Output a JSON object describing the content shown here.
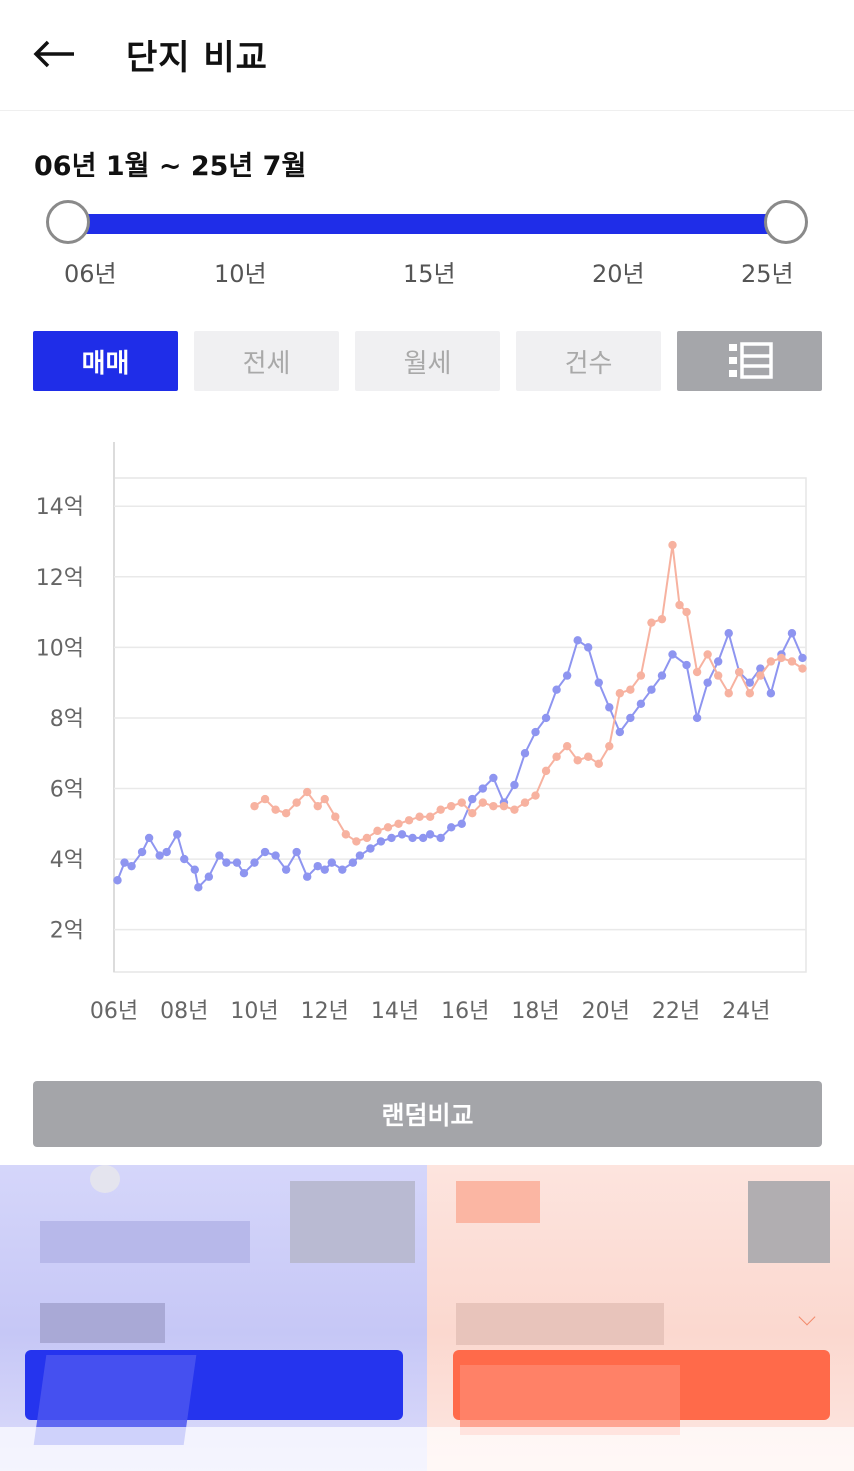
{
  "header": {
    "title": "단지 비교",
    "back_icon": "arrow-left-icon"
  },
  "range": {
    "label": "06년 1월 ~ 25년 7월",
    "ticks": [
      "06년",
      "10년",
      "15년",
      "20년",
      "25년"
    ],
    "start": "06년 1월",
    "end": "25년 7월"
  },
  "tabs": [
    {
      "label": "매매",
      "active": true
    },
    {
      "label": "전세",
      "active": false
    },
    {
      "label": "월세",
      "active": false
    },
    {
      "label": "건수",
      "active": false
    }
  ],
  "tab_list_icon": "list-view-icon",
  "colors": {
    "accent": "#1f2de8",
    "blue_series": "#8e95f0",
    "salmon_series": "#f7b2a0",
    "button_gray": "#a4a5a9"
  },
  "chart_data": {
    "type": "line",
    "y_ticks": [
      "14억",
      "12억",
      "10억",
      "8억",
      "6억",
      "4억",
      "2억"
    ],
    "x_ticks": [
      "06년",
      "08년",
      "10년",
      "12년",
      "14년",
      "16년",
      "18년",
      "20년",
      "22년",
      "24년"
    ],
    "ylim": [
      0.8,
      14.8
    ],
    "xlim": [
      2006.0,
      2025.7
    ],
    "grid": true,
    "series": [
      {
        "color": "#8e95f0",
        "x": [
          2006.1,
          2006.3,
          2006.5,
          2006.8,
          2007.0,
          2007.3,
          2007.5,
          2007.8,
          2008.0,
          2008.3,
          2008.4,
          2008.7,
          2009.0,
          2009.2,
          2009.5,
          2009.7,
          2010.0,
          2010.3,
          2010.6,
          2010.9,
          2011.2,
          2011.5,
          2011.8,
          2012.0,
          2012.2,
          2012.5,
          2012.8,
          2013.0,
          2013.3,
          2013.6,
          2013.9,
          2014.2,
          2014.5,
          2014.8,
          2015.0,
          2015.3,
          2015.6,
          2015.9,
          2016.2,
          2016.5,
          2016.8,
          2017.1,
          2017.4,
          2017.7,
          2018.0,
          2018.3,
          2018.6,
          2018.9,
          2019.2,
          2019.5,
          2019.8,
          2020.1,
          2020.4,
          2020.7,
          2021.0,
          2021.3,
          2021.6,
          2021.9,
          2022.3,
          2022.6,
          2022.9,
          2023.2,
          2023.5,
          2023.8,
          2024.1,
          2024.4,
          2024.7,
          2025.0,
          2025.3,
          2025.6
        ],
        "y": [
          3.4,
          3.9,
          3.8,
          4.2,
          4.6,
          4.1,
          4.2,
          4.7,
          4.0,
          3.7,
          3.2,
          3.5,
          4.1,
          3.9,
          3.9,
          3.6,
          3.9,
          4.2,
          4.1,
          3.7,
          4.2,
          3.5,
          3.8,
          3.7,
          3.9,
          3.7,
          3.9,
          4.1,
          4.3,
          4.5,
          4.6,
          4.7,
          4.6,
          4.6,
          4.7,
          4.6,
          4.9,
          5.0,
          5.7,
          6.0,
          6.3,
          5.6,
          6.1,
          7.0,
          7.6,
          8.0,
          8.8,
          9.2,
          10.2,
          10.0,
          9.0,
          8.3,
          7.6,
          8.0,
          8.4,
          8.8,
          9.2,
          9.8,
          9.5,
          8.0,
          9.0,
          9.6,
          10.4,
          9.3,
          9.0,
          9.4,
          8.7,
          9.8,
          10.4,
          9.7
        ]
      },
      {
        "color": "#f7b2a0",
        "x": [
          2010.0,
          2010.3,
          2010.6,
          2010.9,
          2011.2,
          2011.5,
          2011.8,
          2012.0,
          2012.3,
          2012.6,
          2012.9,
          2013.2,
          2013.5,
          2013.8,
          2014.1,
          2014.4,
          2014.7,
          2015.0,
          2015.3,
          2015.6,
          2015.9,
          2016.2,
          2016.5,
          2016.8,
          2017.1,
          2017.4,
          2017.7,
          2018.0,
          2018.3,
          2018.6,
          2018.9,
          2019.2,
          2019.5,
          2019.8,
          2020.1,
          2020.4,
          2020.7,
          2021.0,
          2021.3,
          2021.6,
          2021.9,
          2022.1,
          2022.3,
          2022.6,
          2022.9,
          2023.2,
          2023.5,
          2023.8,
          2024.1,
          2024.4,
          2024.7,
          2025.0,
          2025.3,
          2025.6
        ],
        "y": [
          5.5,
          5.7,
          5.4,
          5.3,
          5.6,
          5.9,
          5.5,
          5.7,
          5.2,
          4.7,
          4.5,
          4.6,
          4.8,
          4.9,
          5.0,
          5.1,
          5.2,
          5.2,
          5.4,
          5.5,
          5.6,
          5.3,
          5.6,
          5.5,
          5.5,
          5.4,
          5.6,
          5.8,
          6.5,
          6.9,
          7.2,
          6.8,
          6.9,
          6.7,
          7.2,
          8.7,
          8.8,
          9.2,
          10.7,
          10.8,
          12.9,
          11.2,
          11.0,
          9.3,
          9.8,
          9.2,
          8.7,
          9.3,
          8.7,
          9.2,
          9.6,
          9.7,
          9.6,
          9.4
        ]
      }
    ]
  },
  "random_compare_label": "랜덤비교"
}
